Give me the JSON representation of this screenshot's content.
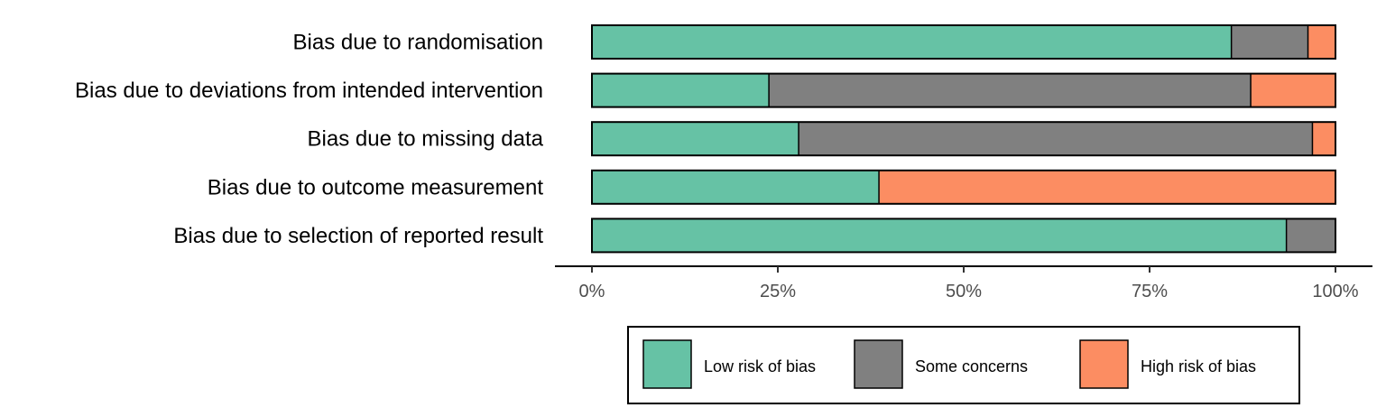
{
  "chart_data": {
    "type": "bar",
    "orientation": "horizontal",
    "stacked": true,
    "percent": true,
    "categories": [
      "Bias due to randomisation",
      "Bias due to deviations from intended intervention",
      "Bias due to missing data",
      "Bias due to outcome measurement",
      "Bias due to selection of reported result"
    ],
    "series": [
      {
        "name": "Low risk of bias",
        "color": "#66c2a5",
        "values": [
          86.0,
          23.8,
          27.8,
          38.6,
          93.4
        ]
      },
      {
        "name": "Some concerns",
        "color": "#808080",
        "values": [
          10.3,
          64.8,
          69.1,
          0.0,
          6.6
        ]
      },
      {
        "name": "High risk of bias",
        "color": "#fc8d62",
        "values": [
          3.7,
          11.4,
          3.1,
          61.4,
          0.0
        ]
      }
    ],
    "xlim": [
      0,
      100
    ],
    "x_ticks": [
      0,
      25,
      50,
      75,
      100
    ],
    "x_tick_labels": [
      "0%",
      "25%",
      "50%",
      "75%",
      "100%"
    ],
    "grid": false,
    "legend_position": "bottom"
  }
}
